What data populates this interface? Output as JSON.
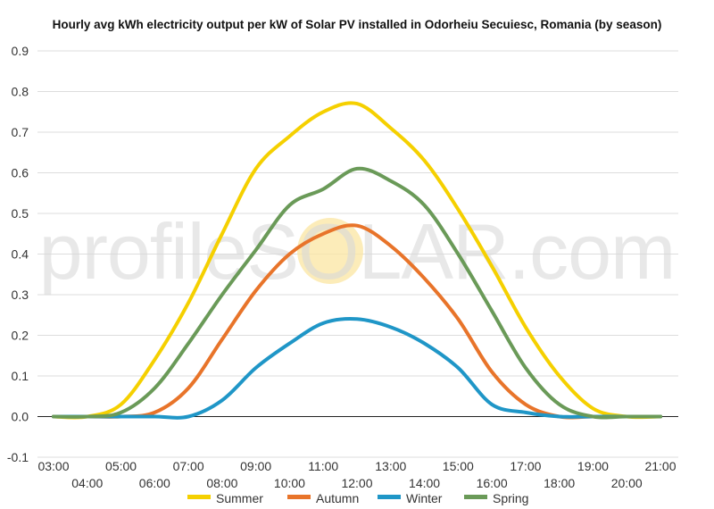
{
  "chart_data": {
    "type": "line",
    "title": "Hourly avg kWh electricity output per kW of Solar PV installed in Odorheiu Secuiesc, Romania (by season)",
    "watermark": "profileSOLAR.com",
    "xlabel": "",
    "ylabel": "",
    "ylim": [
      -0.1,
      0.9
    ],
    "y_ticks": [
      "-0.1",
      "0.0",
      "0.1",
      "0.2",
      "0.3",
      "0.4",
      "0.5",
      "0.6",
      "0.7",
      "0.8",
      "0.9"
    ],
    "x": [
      "03:00",
      "04:00",
      "05:00",
      "06:00",
      "07:00",
      "08:00",
      "09:00",
      "10:00",
      "11:00",
      "12:00",
      "13:00",
      "14:00",
      "15:00",
      "16:00",
      "17:00",
      "18:00",
      "19:00",
      "20:00",
      "21:00"
    ],
    "grid": true,
    "legend_position": "bottom",
    "series": [
      {
        "name": "Summer",
        "color": "#f5d000",
        "values": [
          0.0,
          0.0,
          0.03,
          0.14,
          0.28,
          0.45,
          0.61,
          0.69,
          0.75,
          0.77,
          0.71,
          0.63,
          0.51,
          0.37,
          0.22,
          0.1,
          0.02,
          0.0,
          0.0
        ]
      },
      {
        "name": "Autumn",
        "color": "#e8742a",
        "values": [
          0.0,
          0.0,
          0.0,
          0.01,
          0.07,
          0.19,
          0.31,
          0.4,
          0.45,
          0.47,
          0.42,
          0.34,
          0.24,
          0.11,
          0.03,
          0.0,
          0.0,
          0.0,
          0.0
        ]
      },
      {
        "name": "Winter",
        "color": "#1f96c7",
        "values": [
          0.0,
          0.0,
          0.0,
          0.0,
          0.0,
          0.04,
          0.12,
          0.18,
          0.23,
          0.24,
          0.22,
          0.18,
          0.12,
          0.03,
          0.01,
          0.0,
          0.0,
          0.0,
          0.0
        ]
      },
      {
        "name": "Spring",
        "color": "#6a9a58",
        "values": [
          0.0,
          0.0,
          0.01,
          0.07,
          0.18,
          0.3,
          0.41,
          0.52,
          0.56,
          0.61,
          0.58,
          0.52,
          0.4,
          0.26,
          0.12,
          0.03,
          0.0,
          0.0,
          0.0
        ]
      }
    ]
  }
}
